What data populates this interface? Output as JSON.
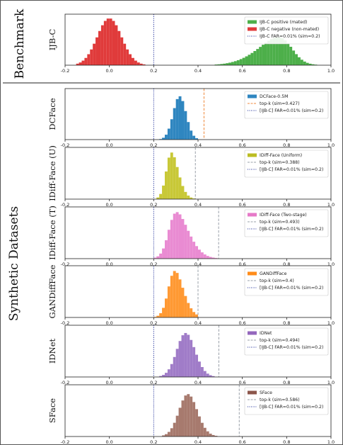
{
  "figure": {
    "group_labels": {
      "benchmark": "Benchmark",
      "synthetic": "Synthetic Datasets"
    }
  },
  "chart_data": [
    {
      "type": "histogram",
      "row_label": "IJB-C",
      "xlim": [
        -0.2,
        1.0
      ],
      "xticks": [
        "-0.2",
        "0.0",
        "0.2",
        "0.4",
        "0.6",
        "0.8",
        "1.0"
      ],
      "vline_dotted": 0.2,
      "legend": [
        {
          "kind": "patch",
          "text": "IJB-C positive (mated)",
          "color": "#4daf4a"
        },
        {
          "kind": "patch",
          "text": "IJB-C negative (non-mated)",
          "color": "#e03b3b"
        },
        {
          "kind": "dotted",
          "text": "IJB-C FAR=0.01% (sim=0.2)",
          "color": "#1f2f9a"
        }
      ],
      "series": [
        {
          "name": "IJB-C negative (non-mated)",
          "color": "#e03b3b",
          "mean": 0.0,
          "sd": 0.055,
          "peak": 0.92,
          "range": [
            -0.15,
            0.2
          ]
        },
        {
          "name": "IJB-C positive (mated)",
          "color": "#4daf4a",
          "mean": 0.82,
          "sd": 0.12,
          "peak": 0.55,
          "range": [
            0.2,
            1.0
          ],
          "skew": -4
        }
      ]
    },
    {
      "type": "histogram",
      "row_label": "DCFace",
      "xlim": [
        -0.2,
        1.0
      ],
      "xticks": [
        "-0.2",
        "0.0",
        "0.2",
        "0.4",
        "0.6",
        "0.8",
        "1.0"
      ],
      "vline_dotted": 0.2,
      "vline_dashed": 0.427,
      "legend": [
        {
          "kind": "patch",
          "text": "DCFace-0.5M",
          "color": "#2f86c0"
        },
        {
          "kind": "dashed",
          "text": "top-k (sim=0.427)",
          "color": "#f08a3c"
        },
        {
          "kind": "dotted",
          "text": "[IJB-C] FAR=0.01% (sim=0.2)",
          "color": "#1f2f9a"
        }
      ],
      "series": [
        {
          "name": "DCFace-0.5M",
          "color": "#2f86c0",
          "mean": 0.31,
          "sd": 0.03,
          "peak": 0.85,
          "range": [
            0.2,
            0.42
          ],
          "skew": 0.5
        }
      ]
    },
    {
      "type": "histogram",
      "row_label": "IDiff-Face (U)",
      "xlim": [
        -0.2,
        1.0
      ],
      "xticks": [
        "-0.2",
        "0.0",
        "0.2",
        "0.4",
        "0.6",
        "0.8",
        "1.0"
      ],
      "vline_dotted": 0.2,
      "vline_dashed": 0.388,
      "legend": [
        {
          "kind": "patch",
          "text": "IDiff-Face (Uniform)",
          "color": "#bcbd22"
        },
        {
          "kind": "dashed",
          "text": "top-k (sim=0.388)",
          "color": "#9aa0a8"
        },
        {
          "kind": "dotted",
          "text": "[IJB-C] FAR=0.01% (sim=0.2)",
          "color": "#1f2f9a"
        }
      ],
      "series": [
        {
          "name": "IDiff-Face (Uniform)",
          "color": "#c8c837",
          "mean": 0.26,
          "sd": 0.04,
          "peak": 0.9,
          "range": [
            0.2,
            0.39
          ],
          "skew": 3
        }
      ]
    },
    {
      "type": "histogram",
      "row_label": "IDiff-Face (T)",
      "xlim": [
        -0.2,
        1.0
      ],
      "xticks": [
        "-0.2",
        "0.0",
        "0.2",
        "0.4",
        "0.6",
        "0.8",
        "1.0"
      ],
      "vline_dotted": 0.2,
      "vline_dashed": 0.493,
      "legend": [
        {
          "kind": "patch",
          "text": "IDiff-Face (Two-stage)",
          "color": "#e67ac8"
        },
        {
          "kind": "dashed",
          "text": "top-k (sim=0.493)",
          "color": "#9aa0a8"
        },
        {
          "kind": "dotted",
          "text": "[IJB-C] FAR=0.01% (sim=0.2)",
          "color": "#1f2f9a"
        }
      ],
      "series": [
        {
          "name": "IDiff-Face (Two-stage)",
          "color": "#e98bd2",
          "mean": 0.27,
          "sd": 0.07,
          "peak": 0.9,
          "range": [
            0.2,
            0.5
          ],
          "skew": 4
        }
      ]
    },
    {
      "type": "histogram",
      "row_label": "GANDiffFace",
      "xlim": [
        -0.2,
        1.0
      ],
      "xticks": [
        "-0.2",
        "0.0",
        "0.2",
        "0.4",
        "0.6",
        "0.8",
        "1.0"
      ],
      "vline_dotted": 0.2,
      "vline_dashed": 0.4,
      "legend": [
        {
          "kind": "patch",
          "text": "GANDiffFace",
          "color": "#ff8c1a"
        },
        {
          "kind": "dashed",
          "text": "top-k (sim=0.4)",
          "color": "#9aa0a8"
        },
        {
          "kind": "dotted",
          "text": "[IJB-C] FAR=0.01% (sim=0.2)",
          "color": "#1f2f9a"
        }
      ],
      "series": [
        {
          "name": "GANDiffFace",
          "color": "#ff9933",
          "mean": 0.27,
          "sd": 0.05,
          "peak": 0.9,
          "range": [
            0.2,
            0.4
          ],
          "skew": 3
        }
      ]
    },
    {
      "type": "histogram",
      "row_label": "IDNet",
      "xlim": [
        -0.2,
        1.0
      ],
      "xticks": [
        "-0.2",
        "0.0",
        "0.2",
        "0.4",
        "0.6",
        "0.8",
        "1.0"
      ],
      "vline_dotted": 0.2,
      "vline_dashed": 0.494,
      "legend": [
        {
          "kind": "patch",
          "text": "IDNet",
          "color": "#9467bd"
        },
        {
          "kind": "dashed",
          "text": "top-k (sim=0.494)",
          "color": "#9aa0a8"
        },
        {
          "kind": "dotted",
          "text": "[IJB-C] FAR=0.01% (sim=0.2)",
          "color": "#1f2f9a"
        }
      ],
      "series": [
        {
          "name": "IDNet",
          "color": "#a07cc8",
          "mean": 0.32,
          "sd": 0.05,
          "peak": 0.85,
          "range": [
            0.2,
            0.5
          ],
          "skew": 1.5
        }
      ]
    },
    {
      "type": "histogram",
      "row_label": "SFace",
      "xlim": [
        -0.2,
        1.0
      ],
      "xticks": [
        "-0.2",
        "0.0",
        "0.2",
        "0.4",
        "0.6",
        "0.8",
        "1.0"
      ],
      "vline_dotted": 0.2,
      "vline_dashed": 0.586,
      "legend": [
        {
          "kind": "patch",
          "text": "SFace",
          "color": "#8c564b"
        },
        {
          "kind": "dashed",
          "text": "top-k (sim=0.586)",
          "color": "#9aa0a8"
        },
        {
          "kind": "dotted",
          "text": "[IJB-C] FAR=0.01% (sim=0.2)",
          "color": "#1f2f9a"
        }
      ],
      "series": [
        {
          "name": "SFace",
          "color": "#a77a6e",
          "mean": 0.33,
          "sd": 0.05,
          "peak": 0.82,
          "range": [
            0.2,
            0.5
          ],
          "skew": 1.5
        }
      ]
    }
  ]
}
